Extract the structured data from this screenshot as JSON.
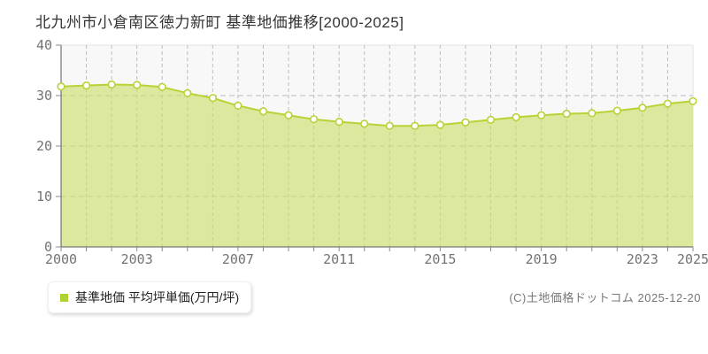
{
  "page": {
    "copyright": "(C)土地価格ドットコム 2025-12-20"
  },
  "legend": {
    "label": "基準地価 平均坪単価(万円/坪)"
  },
  "chart_data": {
    "type": "area",
    "title": "北九州市小倉南区徳力新町 基準地価推移[2000-2025]",
    "xlabel": "",
    "ylabel": "基準地価 平均坪単価(万円/坪)",
    "x": [
      2000,
      2001,
      2002,
      2003,
      2004,
      2005,
      2006,
      2007,
      2008,
      2009,
      2010,
      2011,
      2012,
      2013,
      2014,
      2015,
      2016,
      2017,
      2018,
      2019,
      2020,
      2021,
      2022,
      2023,
      2024,
      2025
    ],
    "series": [
      {
        "name": "基準地価 平均坪単価(万円/坪)",
        "values": [
          31.8,
          32.0,
          32.2,
          32.1,
          31.7,
          30.5,
          29.5,
          28.0,
          26.9,
          26.1,
          25.3,
          24.8,
          24.4,
          24.0,
          24.0,
          24.2,
          24.7,
          25.2,
          25.7,
          26.1,
          26.4,
          26.5,
          27.0,
          27.6,
          28.4,
          28.9
        ]
      }
    ],
    "ylim": [
      0,
      40
    ],
    "yticks": [
      0,
      10,
      20,
      30,
      40
    ],
    "xtick_labels": [
      "2000",
      "2003",
      "2007",
      "2011",
      "2015",
      "2019",
      "2023",
      "2025"
    ],
    "grid": "dashed",
    "legend_position": "bottom-left",
    "colors": {
      "line": "#b7d336",
      "fill": "#c9df65",
      "marker_fill": "#ffffff",
      "legend_marker": "#aed133",
      "grid": "#bdbdbd",
      "axis": "#5a5a5a",
      "tick_label": "#737373",
      "plot_bg": "#f8f8f8",
      "plot_border": "#e2e2e2"
    }
  }
}
